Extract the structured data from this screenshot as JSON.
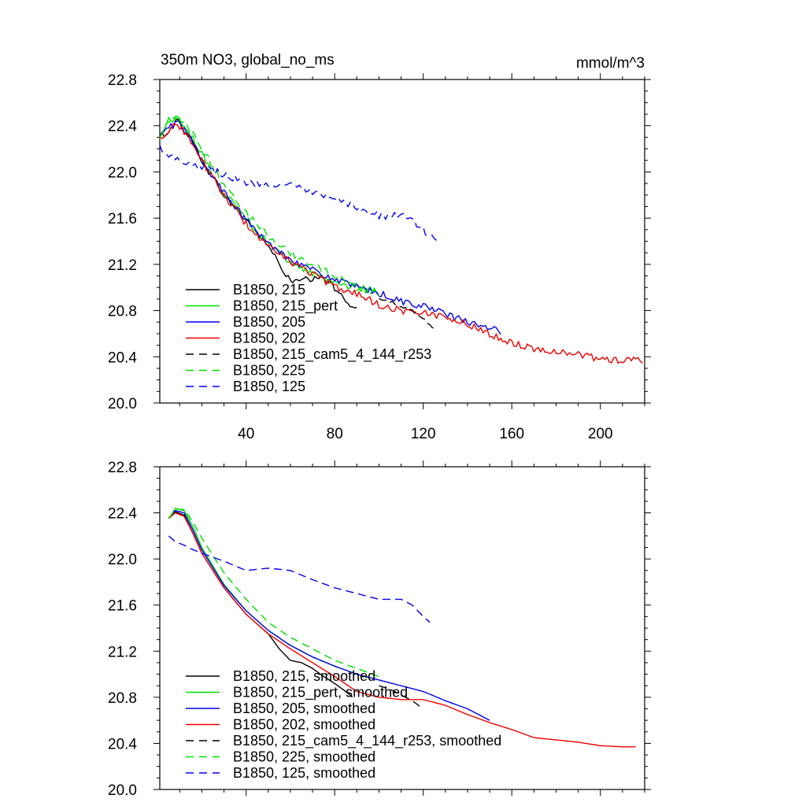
{
  "title_left": "350m NO3, global_no_ms",
  "title_right": "mmol/m^3",
  "colors": {
    "black": "#000000",
    "green": "#00e000",
    "blue": "#0000ee",
    "red": "#ee0000"
  },
  "chart_data": [
    {
      "type": "line",
      "title": "350m NO3, global_no_ms",
      "units_label": "mmol/m^3",
      "xlim": [
        1,
        220
      ],
      "ylim": [
        20.0,
        22.8
      ],
      "x_ticks": [
        40,
        80,
        120,
        160,
        200
      ],
      "x_tick_labels": [
        "40",
        "80",
        "120",
        "160",
        "200"
      ],
      "y_ticks": [
        20.0,
        20.4,
        20.8,
        21.2,
        21.6,
        22.0,
        22.4,
        22.8
      ],
      "y_tick_labels": [
        "20.0",
        "20.4",
        "20.8",
        "21.2",
        "21.6",
        "22.0",
        "22.4",
        "22.8"
      ],
      "legend_position": "bottom-left",
      "series": [
        {
          "name": "B1850, 215",
          "color": "#000000",
          "dash": "solid",
          "noise": 0.03,
          "x": [
            1,
            5,
            9,
            14,
            20,
            30,
            40,
            50,
            55,
            60,
            65,
            70,
            75,
            80,
            85,
            90
          ],
          "y": [
            22.3,
            22.36,
            22.44,
            22.32,
            22.1,
            21.8,
            21.58,
            21.36,
            21.2,
            21.05,
            21.06,
            21.07,
            21.08,
            21.0,
            20.9,
            20.8
          ]
        },
        {
          "name": "B1850, 215_pert",
          "color": "#00e000",
          "dash": "solid",
          "noise": 0.03,
          "x": [
            1,
            5,
            9,
            14,
            20,
            30,
            40,
            50,
            60,
            70,
            80,
            90,
            100
          ],
          "y": [
            22.3,
            22.45,
            22.47,
            22.35,
            22.15,
            21.82,
            21.6,
            21.38,
            21.22,
            21.12,
            21.05,
            21.0,
            20.96
          ]
        },
        {
          "name": "B1850, 205",
          "color": "#0000ee",
          "dash": "solid",
          "noise": 0.03,
          "x": [
            1,
            5,
            9,
            14,
            20,
            30,
            40,
            50,
            60,
            70,
            80,
            90,
            100,
            110,
            120,
            130,
            140,
            150,
            155
          ],
          "y": [
            22.3,
            22.38,
            22.44,
            22.32,
            22.1,
            21.82,
            21.58,
            21.38,
            21.25,
            21.15,
            21.07,
            21.0,
            20.95,
            20.88,
            20.84,
            20.77,
            20.7,
            20.64,
            20.62
          ]
        },
        {
          "name": "B1850, 202",
          "color": "#ee0000",
          "dash": "solid",
          "noise": 0.03,
          "x": [
            1,
            5,
            9,
            14,
            20,
            30,
            40,
            50,
            60,
            70,
            80,
            90,
            100,
            110,
            120,
            130,
            140,
            150,
            160,
            170,
            180,
            190,
            200,
            210,
            219
          ],
          "y": [
            22.3,
            22.36,
            22.42,
            22.3,
            22.1,
            21.8,
            21.55,
            21.35,
            21.22,
            21.12,
            21.0,
            20.95,
            20.85,
            20.8,
            20.78,
            20.75,
            20.68,
            20.6,
            20.52,
            20.47,
            20.45,
            20.42,
            20.38,
            20.37,
            20.37
          ]
        },
        {
          "name": "B1850, 215_cam5_4_144_r253",
          "color": "#000000",
          "dash": "dashed",
          "noise": 0.015,
          "x": [
            100,
            105,
            110,
            115,
            120,
            125
          ],
          "y": [
            20.9,
            20.88,
            20.83,
            20.8,
            20.73,
            20.65
          ]
        },
        {
          "name": "B1850, 225",
          "color": "#00e000",
          "dash": "dashed",
          "noise": 0.03,
          "x": [
            1,
            5,
            9,
            14,
            20,
            30,
            40,
            50,
            60,
            70,
            80,
            90,
            100
          ],
          "y": [
            22.28,
            22.43,
            22.47,
            22.38,
            22.2,
            21.9,
            21.65,
            21.45,
            21.3,
            21.2,
            21.1,
            21.0,
            20.95
          ]
        },
        {
          "name": "B1850, 125",
          "color": "#0000ee",
          "dash": "dashed",
          "noise": 0.03,
          "x": [
            1,
            5,
            10,
            15,
            20,
            30,
            40,
            50,
            60,
            70,
            80,
            90,
            100,
            110,
            115,
            120,
            125,
            127
          ],
          "y": [
            22.22,
            22.15,
            22.1,
            22.08,
            22.05,
            21.98,
            21.9,
            21.9,
            21.88,
            21.82,
            21.75,
            21.7,
            21.62,
            21.62,
            21.58,
            21.5,
            21.42,
            21.4
          ]
        }
      ]
    },
    {
      "type": "line",
      "xlim": [
        1,
        220
      ],
      "ylim": [
        20.0,
        22.8
      ],
      "x_ticks": [
        40,
        80,
        120,
        160,
        200
      ],
      "y_ticks": [
        20.0,
        20.4,
        20.8,
        21.2,
        21.6,
        22.0,
        22.4,
        22.8
      ],
      "y_tick_labels": [
        "20.0",
        "20.4",
        "20.8",
        "21.2",
        "21.6",
        "22.0",
        "22.4",
        "22.8"
      ],
      "legend_position": "bottom-left",
      "series": [
        {
          "name": "B1850, 215, smoothed",
          "color": "#000000",
          "dash": "solid",
          "noise": 0,
          "x": [
            5,
            8,
            12,
            16,
            20,
            30,
            40,
            50,
            55,
            60,
            65,
            70,
            75,
            80,
            85,
            88
          ],
          "y": [
            22.35,
            22.41,
            22.38,
            22.22,
            22.05,
            21.75,
            21.52,
            21.35,
            21.22,
            21.12,
            21.1,
            21.05,
            20.98,
            20.92,
            20.85,
            20.8
          ]
        },
        {
          "name": "B1850, 215_pert, smoothed",
          "color": "#00e000",
          "dash": "solid",
          "noise": 0,
          "x": [
            5,
            8,
            12,
            16,
            20,
            30,
            40,
            50,
            60,
            70,
            80,
            90,
            95
          ],
          "y": [
            22.35,
            22.44,
            22.42,
            22.28,
            22.1,
            21.78,
            21.55,
            21.38,
            21.25,
            21.15,
            21.07,
            21.0,
            20.97
          ]
        },
        {
          "name": "B1850, 205, smoothed",
          "color": "#0000ee",
          "dash": "solid",
          "noise": 0,
          "x": [
            5,
            8,
            12,
            16,
            20,
            30,
            40,
            50,
            60,
            70,
            80,
            90,
            100,
            110,
            120,
            130,
            140,
            150
          ],
          "y": [
            22.35,
            22.42,
            22.4,
            22.25,
            22.08,
            21.77,
            21.55,
            21.38,
            21.25,
            21.15,
            21.07,
            21.0,
            20.95,
            20.9,
            20.85,
            20.77,
            20.7,
            20.6
          ]
        },
        {
          "name": "B1850, 202, smoothed",
          "color": "#ee0000",
          "dash": "solid",
          "noise": 0,
          "x": [
            5,
            8,
            12,
            16,
            20,
            30,
            40,
            50,
            60,
            70,
            80,
            90,
            100,
            110,
            120,
            130,
            140,
            150,
            160,
            170,
            180,
            190,
            200,
            210,
            216
          ],
          "y": [
            22.35,
            22.4,
            22.37,
            22.22,
            22.05,
            21.75,
            21.52,
            21.35,
            21.22,
            21.1,
            20.98,
            20.85,
            20.8,
            20.78,
            20.78,
            20.73,
            20.65,
            20.58,
            20.52,
            20.45,
            20.43,
            20.41,
            20.38,
            20.37,
            20.37
          ]
        },
        {
          "name": "B1850, 215_cam5_4_144_r253, smoothed",
          "color": "#000000",
          "dash": "dashed",
          "noise": 0,
          "x": [
            100,
            105,
            110,
            115,
            120
          ],
          "y": [
            20.9,
            20.87,
            20.82,
            20.77,
            20.7
          ]
        },
        {
          "name": "B1850, 225, smoothed",
          "color": "#00e000",
          "dash": "dashed",
          "noise": 0,
          "x": [
            5,
            8,
            12,
            16,
            20,
            30,
            40,
            50,
            60,
            70,
            80,
            90,
            100
          ],
          "y": [
            22.35,
            22.43,
            22.43,
            22.32,
            22.18,
            21.88,
            21.65,
            21.45,
            21.32,
            21.22,
            21.12,
            21.05,
            20.98
          ]
        },
        {
          "name": "B1850, 125, smoothed",
          "color": "#0000ee",
          "dash": "dashed",
          "noise": 0,
          "x": [
            5,
            8,
            12,
            16,
            20,
            30,
            40,
            50,
            60,
            70,
            80,
            90,
            100,
            110,
            115,
            120,
            123
          ],
          "y": [
            22.2,
            22.15,
            22.12,
            22.08,
            22.05,
            21.98,
            21.9,
            21.92,
            21.9,
            21.82,
            21.75,
            21.7,
            21.65,
            21.65,
            21.6,
            21.5,
            21.45
          ]
        }
      ]
    }
  ]
}
